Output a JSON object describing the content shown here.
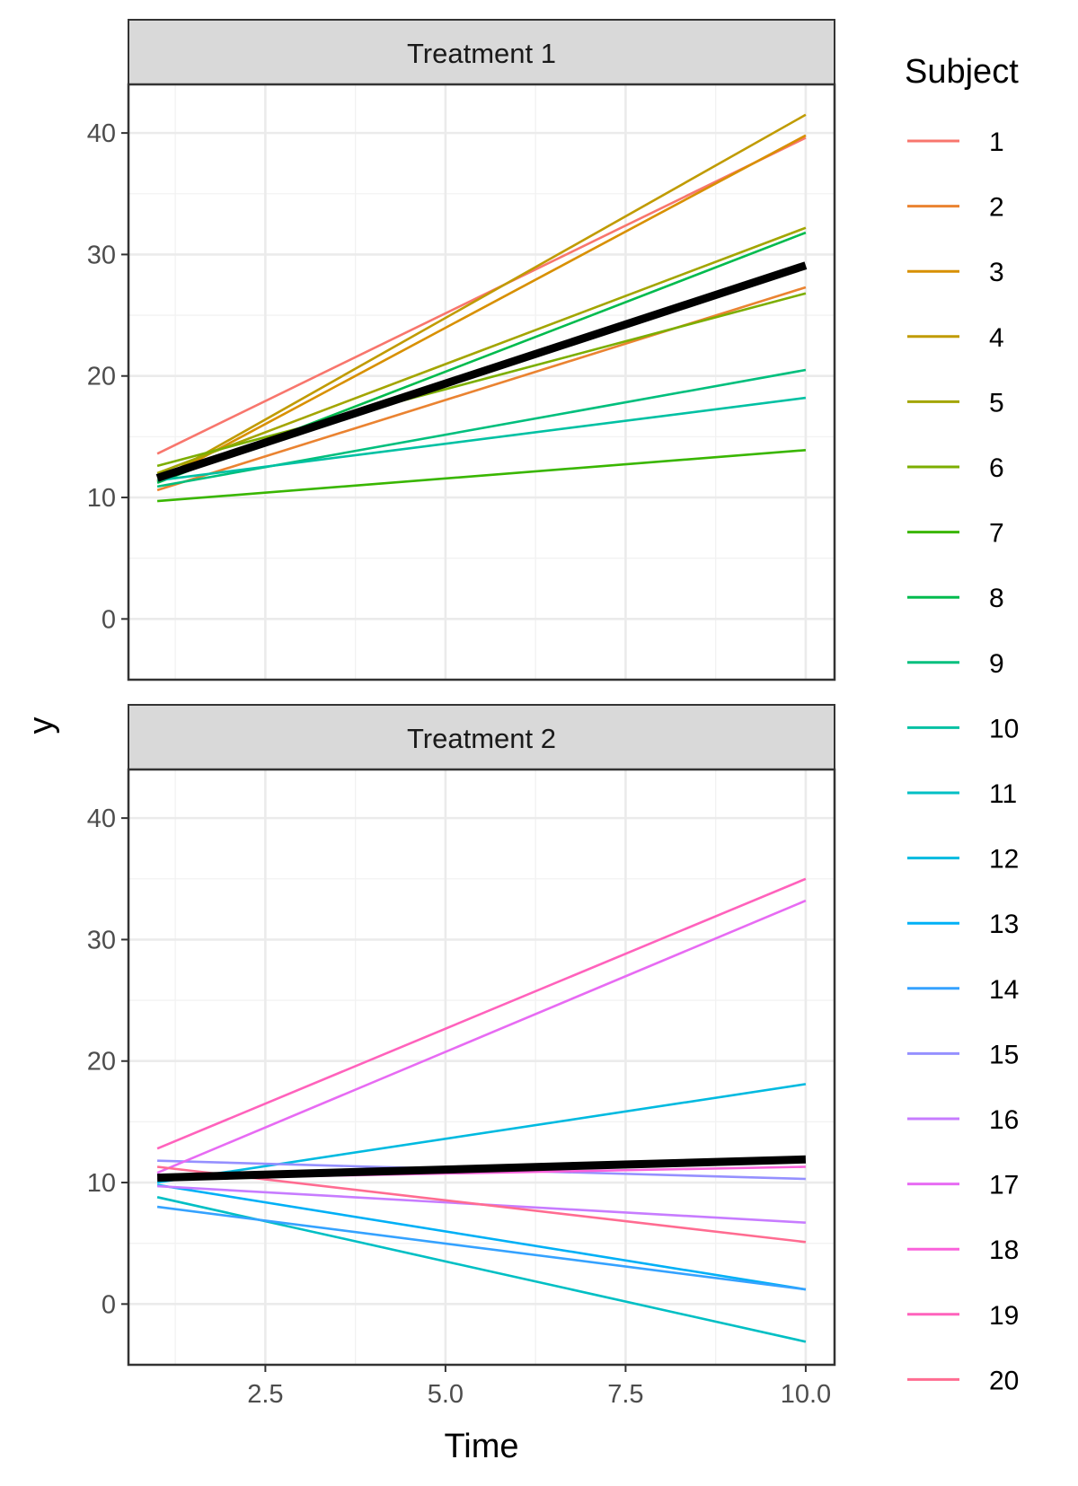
{
  "chart_data": {
    "type": "line",
    "xlabel": "Time",
    "ylabel": "y",
    "xlim": [
      0.6,
      10.4
    ],
    "ylim": [
      -5,
      44
    ],
    "x_ticks": [
      "2.5",
      "5.0",
      "7.5",
      "10.0"
    ],
    "y_ticks": [
      "0",
      "10",
      "20",
      "30",
      "40"
    ],
    "x_tick_values": [
      2.5,
      5.0,
      7.5,
      10.0
    ],
    "y_tick_values": [
      0,
      10,
      20,
      30,
      40
    ],
    "grid": true,
    "legend_position": "right",
    "legend": {
      "title": "Subject",
      "entries": [
        {
          "label": "1",
          "color": "#F8766D"
        },
        {
          "label": "2",
          "color": "#EA8331"
        },
        {
          "label": "3",
          "color": "#D89000"
        },
        {
          "label": "4",
          "color": "#C09B00"
        },
        {
          "label": "5",
          "color": "#A3A500"
        },
        {
          "label": "6",
          "color": "#7CAE00"
        },
        {
          "label": "7",
          "color": "#39B600"
        },
        {
          "label": "8",
          "color": "#00BB4E"
        },
        {
          "label": "9",
          "color": "#00BF7D"
        },
        {
          "label": "10",
          "color": "#00C1A3"
        },
        {
          "label": "11",
          "color": "#00BFC4"
        },
        {
          "label": "12",
          "color": "#00BAE0"
        },
        {
          "label": "13",
          "color": "#00B0F6"
        },
        {
          "label": "14",
          "color": "#35A2FF"
        },
        {
          "label": "15",
          "color": "#9590FF"
        },
        {
          "label": "16",
          "color": "#C77CFF"
        },
        {
          "label": "17",
          "color": "#E76BF3"
        },
        {
          "label": "18",
          "color": "#FA62DB"
        },
        {
          "label": "19",
          "color": "#FF62BC"
        },
        {
          "label": "20",
          "color": "#FF6C91"
        }
      ]
    },
    "panels": [
      {
        "strip": "Treatment 1",
        "series": [
          {
            "name": "1",
            "color": "#F8766D",
            "x": [
              1,
              10
            ],
            "y": [
              13.6,
              39.6
            ]
          },
          {
            "name": "2",
            "color": "#EA8331",
            "x": [
              1,
              10
            ],
            "y": [
              10.6,
              27.3
            ]
          },
          {
            "name": "3",
            "color": "#D89000",
            "x": [
              1,
              10
            ],
            "y": [
              11.3,
              39.8
            ]
          },
          {
            "name": "4",
            "color": "#C09B00",
            "x": [
              1,
              10
            ],
            "y": [
              11.4,
              41.5
            ]
          },
          {
            "name": "5",
            "color": "#A3A500",
            "x": [
              1,
              10
            ],
            "y": [
              12.0,
              32.2
            ]
          },
          {
            "name": "6",
            "color": "#7CAE00",
            "x": [
              1,
              10
            ],
            "y": [
              12.6,
              26.8
            ]
          },
          {
            "name": "7",
            "color": "#39B600",
            "x": [
              1,
              10
            ],
            "y": [
              9.7,
              13.9
            ]
          },
          {
            "name": "8",
            "color": "#00BB4E",
            "x": [
              1,
              10
            ],
            "y": [
              11.2,
              31.8
            ]
          },
          {
            "name": "9",
            "color": "#00BF7D",
            "x": [
              1,
              10
            ],
            "y": [
              10.9,
              20.5
            ]
          },
          {
            "name": "10",
            "color": "#00C1A3",
            "x": [
              1,
              10
            ],
            "y": [
              11.4,
              18.2
            ]
          }
        ],
        "mean_line": {
          "x": [
            1,
            10
          ],
          "y": [
            11.6,
            29.1
          ]
        }
      },
      {
        "strip": "Treatment 2",
        "series": [
          {
            "name": "11",
            "color": "#00BFC4",
            "x": [
              1,
              10
            ],
            "y": [
              8.8,
              -3.1
            ]
          },
          {
            "name": "12",
            "color": "#00BAE0",
            "x": [
              1,
              10
            ],
            "y": [
              10.0,
              18.1
            ]
          },
          {
            "name": "13",
            "color": "#00B0F6",
            "x": [
              1,
              10
            ],
            "y": [
              9.8,
              1.2
            ]
          },
          {
            "name": "14",
            "color": "#35A2FF",
            "x": [
              1,
              10
            ],
            "y": [
              8.0,
              1.2
            ]
          },
          {
            "name": "15",
            "color": "#9590FF",
            "x": [
              1,
              10
            ],
            "y": [
              11.8,
              10.3
            ]
          },
          {
            "name": "16",
            "color": "#C77CFF",
            "x": [
              1,
              10
            ],
            "y": [
              9.7,
              6.7
            ]
          },
          {
            "name": "17",
            "color": "#E76BF3",
            "x": [
              1,
              10
            ],
            "y": [
              10.8,
              33.2
            ]
          },
          {
            "name": "18",
            "color": "#FA62DB",
            "x": [
              1,
              10
            ],
            "y": [
              10.3,
              11.3
            ]
          },
          {
            "name": "19",
            "color": "#FF62BC",
            "x": [
              1,
              10
            ],
            "y": [
              12.8,
              35.0
            ]
          },
          {
            "name": "20",
            "color": "#FF6C91",
            "x": [
              1,
              10
            ],
            "y": [
              11.3,
              5.1
            ]
          }
        ],
        "mean_line": {
          "x": [
            1,
            10
          ],
          "y": [
            10.4,
            11.9
          ]
        }
      }
    ]
  }
}
